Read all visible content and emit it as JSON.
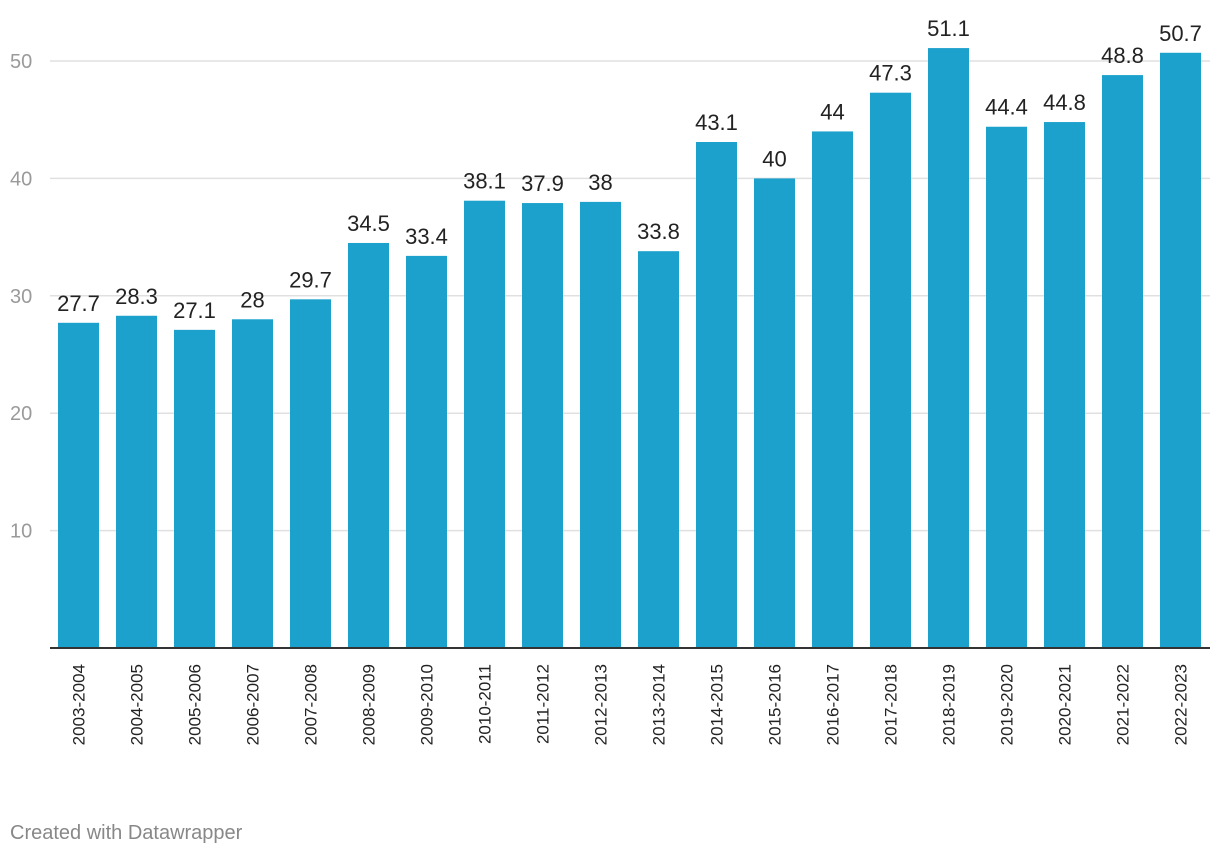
{
  "chart_data": {
    "type": "bar",
    "title": "",
    "xlabel": "",
    "ylabel": "",
    "ylim": [
      0,
      55
    ],
    "yticks": [
      10,
      20,
      30,
      40,
      50
    ],
    "grid": true,
    "categories": [
      "2003-2004",
      "2004-2005",
      "2005-2006",
      "2006-2007",
      "2007-2008",
      "2008-2009",
      "2009-2010",
      "2010-2011",
      "2011-2012",
      "2012-2013",
      "2013-2014",
      "2014-2015",
      "2015-2016",
      "2016-2017",
      "2017-2018",
      "2018-2019",
      "2019-2020",
      "2020-2021",
      "2021-2022",
      "2022-2023"
    ],
    "values": [
      27.7,
      28.3,
      27.1,
      28,
      29.7,
      34.5,
      33.4,
      38.1,
      37.9,
      38,
      33.8,
      43.1,
      40,
      44,
      47.3,
      51.1,
      44.4,
      44.8,
      48.8,
      50.7
    ],
    "value_labels": [
      "27.7",
      "28.3",
      "27.1",
      "28",
      "29.7",
      "34.5",
      "33.4",
      "38.1",
      "37.9",
      "38",
      "33.8",
      "43.1",
      "40",
      "44",
      "47.3",
      "51.1",
      "44.4",
      "44.8",
      "48.8",
      "50.7"
    ]
  },
  "colors": {
    "bar": "#1ba1cc",
    "grid": "#e0e0e0",
    "axis": "#333333",
    "tick_label": "#9a9a9a",
    "value_label": "#222222",
    "category_label": "#222222"
  },
  "footer": {
    "credit": "Created with Datawrapper"
  }
}
